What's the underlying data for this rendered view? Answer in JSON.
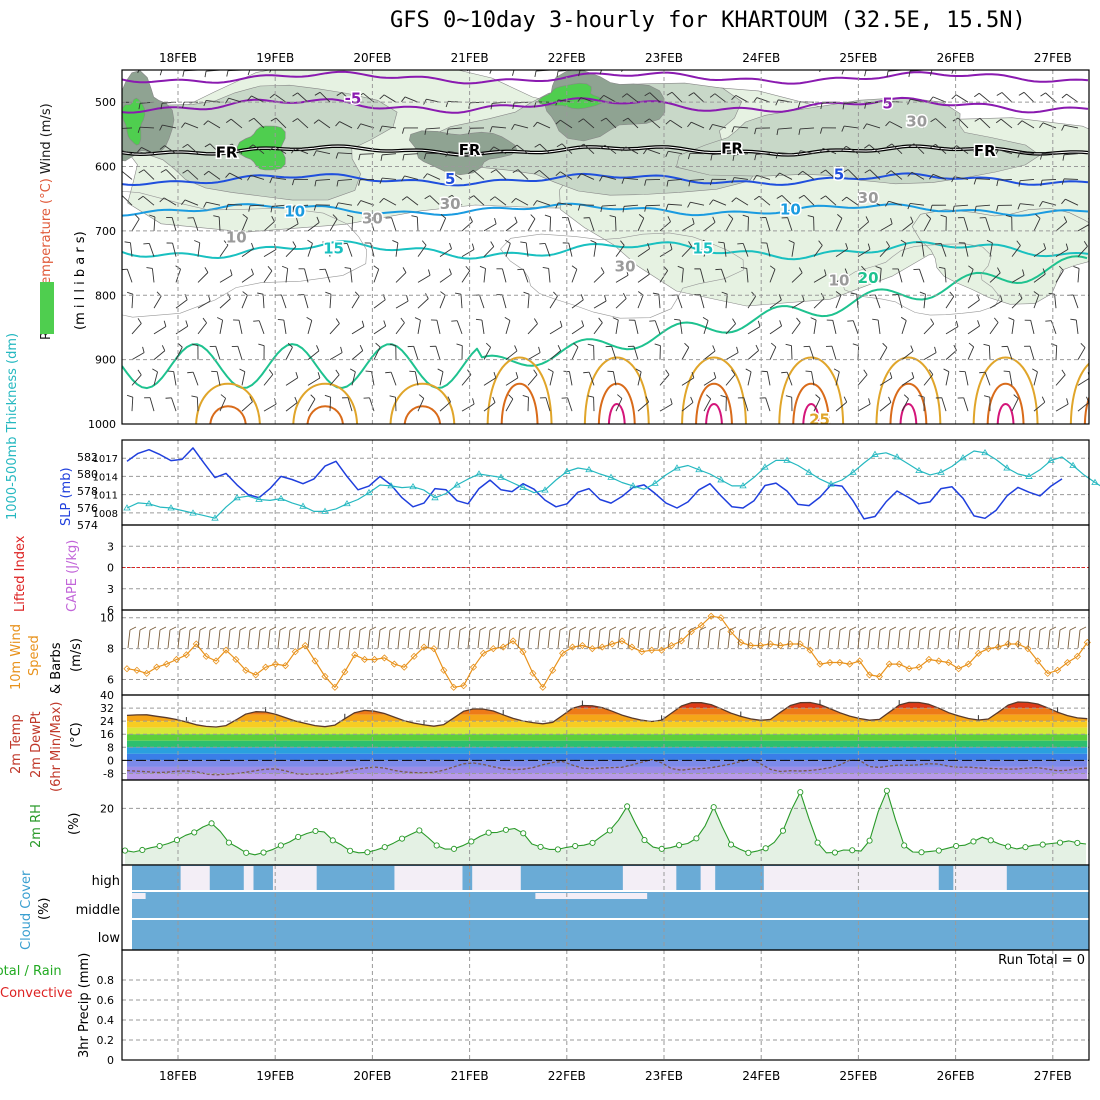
{
  "title": "GFS 0~10day 3-hourly for KHARTOUM (32.5E, 15.5N)",
  "colors": {
    "frame": "#000000",
    "grid": "#9a9a9a",
    "rh_fill_light": "#e6f2e2",
    "rh_fill_mid": "#c8d8c8",
    "rh_fill_dark": "#8fa392",
    "rh_fill_bright": "#4fce4f",
    "temp_purple": "#8a1ab0",
    "temp_blue": "#1f4fdd",
    "temp_lightblue": "#1a9be0",
    "temp_cyan": "#19c0c0",
    "temp_green": "#1ec28f",
    "temp_gold": "#e0a52a",
    "temp_orange": "#d96b1a",
    "temp_magenta": "#d4157a",
    "slp": "#1f3fdd",
    "thickness": "#25b8c0",
    "lifted": "#dd2222",
    "cape": "#c266d9",
    "wind10": "#e8921c",
    "rh2m": "#2a9a2a",
    "rh2m_fill": "#e4f1e4",
    "cloud": "#6aabd6",
    "cloud_clear": "#f3eef6",
    "precip_total": "#22aa22",
    "precip_conv": "#dd2222"
  },
  "chart_data": [
    {
      "type": "contour",
      "panel": "upper-air cross section",
      "ylabel_parts": [
        "RH (%)",
        "Temperature (°C)",
        "Wind (m/s)"
      ],
      "ylabel_units": "(m i l l i b a r s)",
      "y_ticks": [
        500,
        600,
        700,
        800,
        900,
        1000
      ],
      "ylim": [
        450,
        1000
      ],
      "x_ticks": [
        "18FEB",
        "19FEB",
        "20FEB",
        "21FEB",
        "22FEB",
        "23FEB",
        "24FEB",
        "25FEB",
        "26FEB",
        "27FEB"
      ],
      "contour_labels": [
        {
          "text": "-5",
          "day": 1.8,
          "p": 494,
          "color": "temp_purple"
        },
        {
          "text": "5",
          "day": 7.3,
          "p": 502,
          "color": "temp_purple"
        },
        {
          "text": "FR",
          "day": 0.5,
          "p": 578,
          "color": "frame"
        },
        {
          "text": "FR",
          "day": 3.0,
          "p": 574,
          "color": "frame"
        },
        {
          "text": "FR",
          "day": 5.7,
          "p": 572,
          "color": "frame"
        },
        {
          "text": "FR",
          "day": 8.3,
          "p": 576,
          "color": "frame"
        },
        {
          "text": "5",
          "day": 2.8,
          "p": 619,
          "color": "temp_blue"
        },
        {
          "text": "5",
          "day": 6.8,
          "p": 612,
          "color": "temp_blue"
        },
        {
          "text": "10",
          "day": 1.2,
          "p": 670,
          "color": "temp_lightblue"
        },
        {
          "text": "10",
          "day": 6.3,
          "p": 667,
          "color": "temp_lightblue"
        },
        {
          "text": "15",
          "day": 1.6,
          "p": 727,
          "color": "temp_cyan"
        },
        {
          "text": "15",
          "day": 5.4,
          "p": 727,
          "color": "temp_cyan"
        },
        {
          "text": "20",
          "day": 7.1,
          "p": 773,
          "color": "temp_green"
        },
        {
          "text": "25",
          "day": 6.6,
          "p": 993,
          "color": "temp_gold"
        },
        {
          "text": "30",
          "day": 2.0,
          "p": 681,
          "color": "grid"
        },
        {
          "text": "30",
          "day": 2.8,
          "p": 658,
          "color": "grid"
        },
        {
          "text": "30",
          "day": 4.6,
          "p": 755,
          "color": "grid"
        },
        {
          "text": "30",
          "day": 7.1,
          "p": 649,
          "color": "grid"
        },
        {
          "text": "30",
          "day": 7.6,
          "p": 530,
          "color": "grid"
        },
        {
          "text": "10",
          "day": 0.6,
          "p": 710,
          "color": "grid"
        },
        {
          "text": "10",
          "day": 6.8,
          "p": 777,
          "color": "grid"
        }
      ]
    },
    {
      "type": "line",
      "panel": "SLP and thickness",
      "ylabel_left": "1000-500mb Thickness (dm)",
      "ylabel_right": "SLP (mb)",
      "y_ticks_left": [
        574,
        576,
        578,
        580,
        582
      ],
      "y_ticks_right": [
        1008,
        1011,
        1014,
        1017
      ],
      "ylim_left": [
        574,
        584
      ],
      "ylim_right": [
        1006,
        1020
      ],
      "series": [
        {
          "name": "SLP",
          "axis": "right",
          "values": [
            1016.5,
            1017.8,
            1018.4,
            1017.6,
            1016.6,
            1016.8,
            1018.7,
            1016.2,
            1013.8,
            1014.5,
            1012.6,
            1011.0,
            1010.5,
            1012.0,
            1014.0,
            1013.5,
            1012.8,
            1013.6,
            1015.7,
            1016.5,
            1014.0,
            1011.8,
            1012.4,
            1014.0,
            1012.6,
            1010.5,
            1009.0,
            1009.6,
            1012.0,
            1011.8,
            1010.0,
            1009.5,
            1012.0,
            1013.4,
            1011.8,
            1011.5,
            1012.8,
            1011.9,
            1010.1,
            1009.0,
            1009.5,
            1011.4,
            1012.0,
            1010.2,
            1009.6,
            1010.7,
            1012.2,
            1012.6,
            1011.2,
            1009.6,
            1008.8,
            1009.8,
            1011.8,
            1012.8,
            1010.8,
            1009.0,
            1008.8,
            1010.0,
            1012.5,
            1012.9,
            1011.6,
            1009.4,
            1009.2,
            1010.6,
            1012.6,
            1012.4,
            1010.0,
            1007.0,
            1007.4,
            1009.8,
            1011.6,
            1010.6,
            1009.5,
            1009.8,
            1012.0,
            1012.3,
            1010.4,
            1007.5,
            1007.1,
            1008.4,
            1010.8,
            1012.2,
            1011.4,
            1010.8,
            1012.4,
            1013.6
          ]
        },
        {
          "name": "Thickness",
          "axis": "left",
          "values": [
            576.0,
            576.6,
            576.5,
            576.1,
            576.0,
            575.7,
            575.4,
            575.1,
            574.8,
            576.1,
            577.2,
            577.4,
            577.0,
            576.9,
            577.1,
            576.6,
            576.2,
            575.6,
            575.6,
            575.9,
            576.5,
            577.0,
            577.8,
            578.7,
            578.6,
            578.4,
            578.5,
            578.1,
            577.2,
            577.7,
            578.7,
            579.4,
            580.0,
            579.8,
            579.6,
            579.0,
            578.4,
            577.8,
            578.1,
            579.3,
            580.3,
            580.7,
            580.5,
            580.0,
            579.6,
            579.0,
            578.6,
            578.2,
            578.9,
            579.9,
            580.7,
            581.0,
            580.5,
            580.0,
            579.3,
            578.6,
            578.6,
            579.6,
            580.8,
            581.6,
            581.6,
            581.0,
            580.2,
            579.4,
            578.8,
            579.3,
            580.2,
            581.3,
            582.3,
            582.5,
            582.0,
            581.2,
            580.4,
            579.9,
            580.2,
            580.9,
            581.9,
            582.7,
            582.5,
            581.7,
            580.7,
            580.0,
            579.7,
            580.5,
            581.6,
            582.0,
            581.0,
            579.9,
            579.0,
            578.2
          ]
        }
      ]
    },
    {
      "type": "line",
      "panel": "stability",
      "ylabel_left": "Lifted Index",
      "ylabel_right": "CAPE (J/kg)",
      "y_ticks": [
        -3,
        0,
        3,
        6
      ],
      "ylim": [
        -6,
        6
      ],
      "zero_line": 0
    },
    {
      "type": "line",
      "panel": "10m wind",
      "ylabel": "10m Wind Speed & Barbs (m/s)",
      "y_ticks": [
        6,
        8,
        10
      ],
      "ylim": [
        5,
        10.5
      ],
      "series": [
        {
          "name": "Speed",
          "values": [
            6.7,
            6.6,
            6.4,
            6.8,
            7.0,
            7.3,
            7.6,
            8.3,
            7.5,
            7.2,
            7.9,
            7.3,
            6.6,
            6.3,
            6.8,
            7.0,
            6.9,
            7.8,
            8.2,
            7.2,
            6.2,
            5.5,
            6.5,
            7.6,
            7.3,
            7.3,
            7.4,
            7.0,
            6.8,
            7.5,
            8.1,
            8.0,
            6.6,
            5.5,
            5.6,
            6.8,
            7.7,
            8.0,
            8.1,
            8.5,
            7.8,
            6.4,
            5.5,
            6.6,
            7.7,
            8.1,
            8.2,
            8.0,
            8.1,
            8.3,
            8.5,
            8.1,
            7.8,
            7.9,
            7.9,
            8.2,
            8.5,
            9.1,
            9.5,
            10.1,
            10.0,
            9.1,
            8.4,
            8.2,
            8.2,
            8.3,
            8.2,
            8.3,
            8.3,
            7.9,
            7.0,
            7.1,
            7.1,
            7.0,
            7.2,
            6.3,
            6.2,
            7.0,
            7.0,
            6.7,
            6.8,
            7.3,
            7.2,
            7.1,
            6.7,
            7.0,
            7.7,
            8.0,
            8.1,
            8.3,
            8.3,
            8.0,
            7.2,
            6.4,
            6.6,
            7.1,
            7.5,
            8.4
          ]
        }
      ]
    },
    {
      "type": "area",
      "panel": "2m temperature",
      "ylabel": "2m Temp 2m DewPt (6hr Min/Max) (°C)",
      "y_ticks": [
        -8,
        0,
        8,
        16,
        24,
        32,
        40
      ],
      "ylim": [
        -12,
        40
      ],
      "series": [
        {
          "name": "2m Temp",
          "values": [
            27.5,
            27.8,
            27.9,
            27.0,
            26.1,
            25.0,
            23.5,
            21.8,
            20.8,
            20.4,
            21.3,
            24.7,
            28.3,
            29.8,
            29.6,
            28.2,
            26.2,
            24.1,
            22.6,
            21.3,
            20.6,
            21.6,
            25.5,
            29.2,
            30.6,
            30.1,
            28.7,
            26.5,
            24.3,
            22.8,
            21.7,
            20.9,
            21.9,
            26.0,
            30.0,
            31.5,
            31.4,
            30.2,
            27.9,
            25.7,
            24.1,
            23.1,
            22.4,
            23.3,
            27.5,
            31.9,
            33.6,
            33.4,
            32.3,
            30.1,
            27.7,
            25.9,
            24.6,
            23.8,
            24.6,
            28.9,
            33.3,
            35.3,
            35.3,
            34.1,
            31.6,
            28.9,
            26.9,
            25.4,
            24.5,
            25.1,
            29.4,
            33.6,
            35.3,
            35.4,
            34.1,
            31.7,
            29.2,
            27.1,
            25.6,
            24.6,
            25.1,
            29.5,
            33.9,
            35.5,
            35.4,
            34.3,
            31.9,
            29.2,
            27.2,
            25.6,
            24.7,
            25.3,
            29.4,
            33.8,
            35.7,
            35.5,
            34.5,
            32.2,
            29.5,
            27.4,
            26.0,
            25.5
          ]
        },
        {
          "name": "2m DewPt",
          "values": [
            -6.2,
            -6.6,
            -6.9,
            -7.4,
            -7.2,
            -6.6,
            -6.5,
            -6.9,
            -8.3,
            -8.9,
            -8.4,
            -8.1,
            -7.3,
            -6.3,
            -5.4,
            -5.2,
            -6.4,
            -8.1,
            -8.5,
            -8.2,
            -8.4,
            -8.0,
            -6.8,
            -5.6,
            -4.8,
            -4.1,
            -4.7,
            -6.1,
            -7.1,
            -7.5,
            -7.6,
            -7.3,
            -6.0,
            -4.0,
            -2.1,
            -1.6,
            -2.5,
            -3.9,
            -5.1,
            -5.7,
            -5.4,
            -4.4,
            -2.7,
            -1.3,
            -0.7,
            -2.9,
            -4.7,
            -5.1,
            -4.6,
            -4.4,
            -4.2,
            -2.8,
            -1.1,
            0.5,
            -1.5,
            -5.0,
            -6.0,
            -5.3,
            -5.0,
            -4.5,
            -3.4,
            -2.3,
            -0.7,
            0.8,
            -2.1,
            -5.5,
            -6.8,
            -6.3,
            -6.5,
            -6.2,
            -5.5,
            -4.5,
            -2.8,
            0.2,
            0.0,
            -3.8,
            -4.3,
            -3.4,
            -2.9,
            -3.0,
            -2.7,
            -2.0,
            -2.3,
            -3.6,
            -4.2,
            -4.1,
            -4.6,
            -4.9,
            -5.1,
            -5.4,
            -5.2,
            -4.7,
            -4.4,
            -5.4,
            -6.3,
            -6.0,
            -5.1,
            -4.7
          ]
        }
      ]
    },
    {
      "type": "area",
      "panel": "2m RH",
      "ylabel": "2m RH (%)",
      "y_ticks": [
        20
      ],
      "ylim": [
        0,
        30
      ],
      "series": [
        {
          "name": "2m RH",
          "values": [
            5.1,
            4.6,
            5.3,
            6.1,
            6.7,
            7.6,
            8.8,
            10.5,
            11.5,
            13.4,
            14.7,
            11.9,
            7.9,
            6.2,
            4.3,
            3.6,
            4.4,
            5.4,
            6.9,
            8.1,
            9.9,
            11.1,
            12.0,
            11.7,
            8.7,
            7.1,
            5.0,
            4.3,
            4.5,
            5.3,
            6.3,
            7.7,
            9.3,
            10.8,
            12.2,
            9.7,
            6.9,
            5.6,
            5.7,
            6.8,
            8.3,
            10.1,
            11.4,
            11.5,
            12.4,
            12.9,
            11.2,
            7.4,
            6.4,
            5.5,
            5.5,
            6.2,
            6.7,
            7.0,
            7.8,
            10.1,
            12.2,
            15.8,
            20.7,
            14.4,
            8.8,
            6.3,
            5.7,
            6.1,
            7.0,
            7.6,
            9.4,
            13.8,
            20.4,
            13.4,
            7.2,
            5.6,
            4.3,
            4.9,
            5.9,
            8.0,
            12.1,
            19.6,
            25.7,
            16.3,
            7.9,
            4.3,
            4.4,
            5.3,
            5.2,
            4.9,
            8.6,
            18.8,
            26.2,
            16.0,
            6.9,
            4.6,
            4.5,
            4.8,
            5.1,
            5.9,
            6.7,
            7.0,
            8.3,
            9.8,
            8.7,
            7.4,
            6.5,
            5.7,
            6.3,
            7.0,
            7.2,
            7.6,
            7.9,
            8.5,
            7.8,
            7.4
          ]
        }
      ]
    },
    {
      "type": "heatmap",
      "panel": "cloud cover",
      "ylabel": "Cloud Cover (%)",
      "rows": [
        "high",
        "middle",
        "low"
      ],
      "clear_segments": [
        {
          "row": "high",
          "from_day": 0.5,
          "to_day": 0.8
        },
        {
          "row": "high",
          "from_day": 1.15,
          "to_day": 1.25
        },
        {
          "row": "high",
          "from_day": 1.45,
          "to_day": 1.9
        },
        {
          "row": "high",
          "from_day": 2.7,
          "to_day": 3.4
        },
        {
          "row": "high",
          "from_day": 3.5,
          "to_day": 4.0
        },
        {
          "row": "high",
          "from_day": 5.05,
          "to_day": 5.6
        },
        {
          "row": "high",
          "from_day": 5.85,
          "to_day": 6.0
        },
        {
          "row": "high",
          "from_day": 6.5,
          "to_day": 8.3
        },
        {
          "row": "high",
          "from_day": 8.45,
          "to_day": 9.0
        },
        {
          "row": "middle",
          "from_day": 0.0,
          "to_day": 0.14
        },
        {
          "row": "middle",
          "from_day": 4.15,
          "to_day": 5.3
        }
      ]
    },
    {
      "type": "bar",
      "panel": "precipitation",
      "ylabel": "3hr Precip (mm)",
      "ylabel_extra": [
        "Total / Rain",
        "Convective"
      ],
      "y_ticks": [
        0,
        0.2,
        0.4,
        0.6,
        0.8
      ],
      "ylim": [
        0,
        1.0
      ],
      "values": [],
      "annotation": "Run Total = 0"
    }
  ]
}
